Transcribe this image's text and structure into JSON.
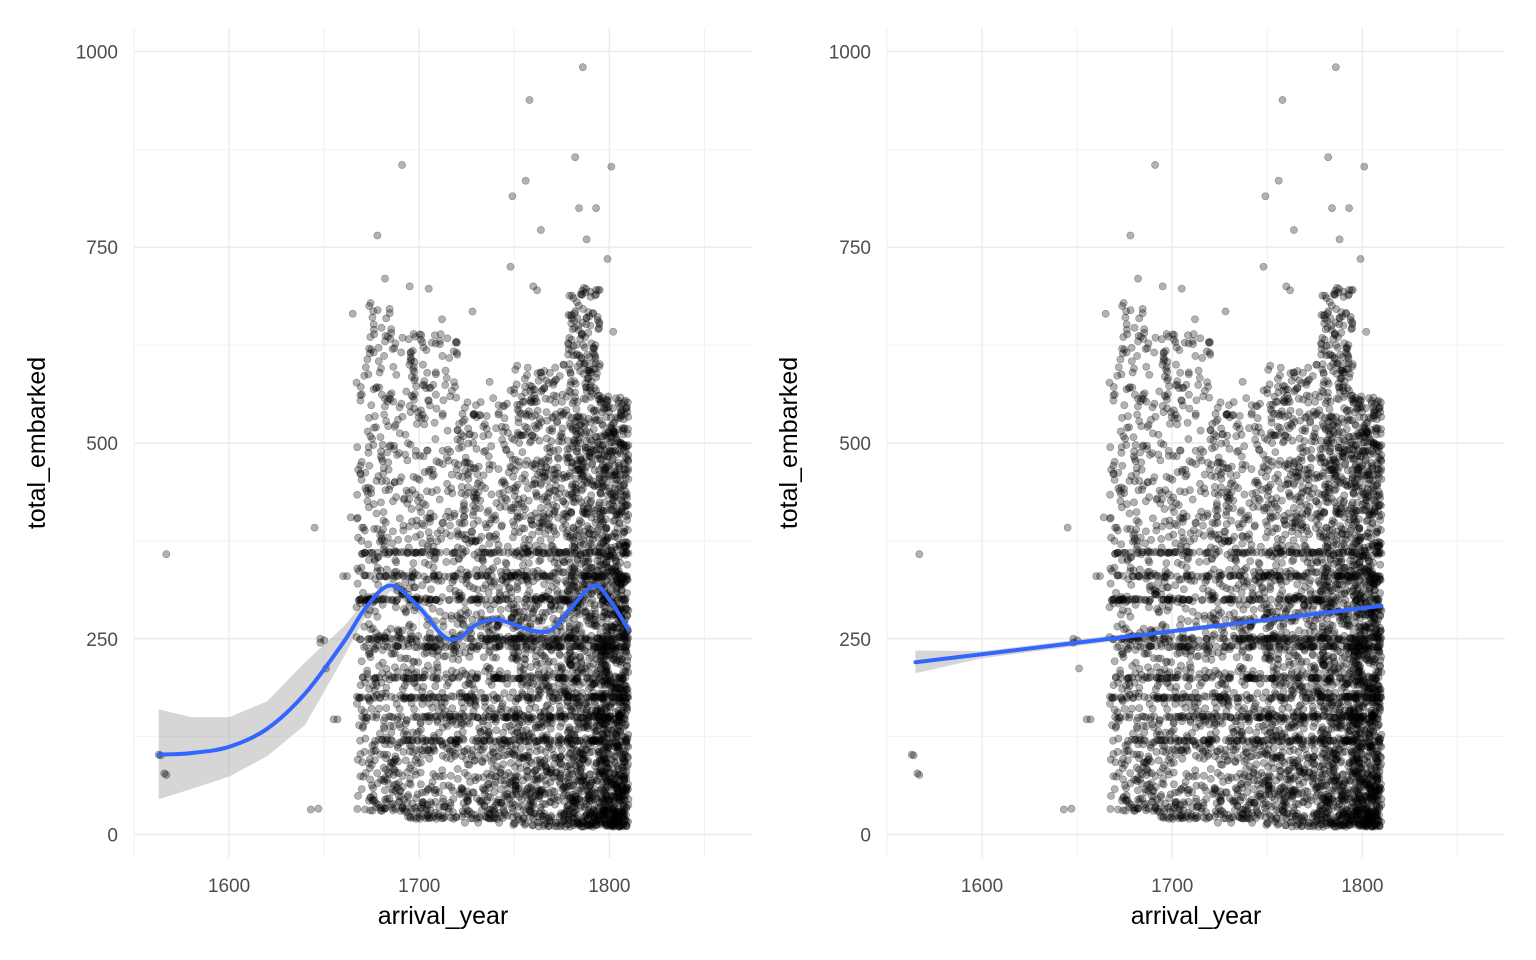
{
  "chart_data": [
    {
      "type": "scatter",
      "panel": "left",
      "smoother": "loess",
      "xlabel": "arrival_year",
      "ylabel": "total_embarked",
      "xlim": [
        1550,
        1875
      ],
      "ylim": [
        -30,
        1030
      ],
      "xticks": [
        1600,
        1700,
        1800
      ],
      "xtick_labels": [
        "1600",
        "1700",
        "1800"
      ],
      "yticks": [
        0,
        250,
        500,
        750,
        1000
      ],
      "ytick_labels": [
        "0",
        "250",
        "500",
        "750",
        "1000"
      ],
      "grid": true,
      "point_color": "#000000",
      "point_alpha": 0.3,
      "smooth_color": "#3366FF",
      "ribbon_color": "#999999",
      "smooth_line": [
        [
          1563,
          102
        ],
        [
          1580,
          104
        ],
        [
          1600,
          112
        ],
        [
          1620,
          135
        ],
        [
          1640,
          180
        ],
        [
          1660,
          245
        ],
        [
          1672,
          290
        ],
        [
          1685,
          318
        ],
        [
          1700,
          290
        ],
        [
          1712,
          255
        ],
        [
          1720,
          250
        ],
        [
          1730,
          268
        ],
        [
          1740,
          275
        ],
        [
          1750,
          268
        ],
        [
          1760,
          260
        ],
        [
          1770,
          262
        ],
        [
          1780,
          290
        ],
        [
          1792,
          318
        ],
        [
          1800,
          300
        ],
        [
          1810,
          262
        ]
      ],
      "ribbon_upper": [
        [
          1563,
          160
        ],
        [
          1580,
          150
        ],
        [
          1600,
          150
        ],
        [
          1620,
          170
        ],
        [
          1640,
          220
        ],
        [
          1660,
          265
        ],
        [
          1672,
          300
        ],
        [
          1685,
          325
        ],
        [
          1700,
          298
        ],
        [
          1712,
          262
        ],
        [
          1720,
          257
        ],
        [
          1730,
          274
        ],
        [
          1740,
          281
        ],
        [
          1750,
          274
        ],
        [
          1760,
          266
        ],
        [
          1770,
          268
        ],
        [
          1780,
          296
        ],
        [
          1792,
          324
        ],
        [
          1800,
          307
        ],
        [
          1810,
          272
        ]
      ],
      "ribbon_lower": [
        [
          1810,
          252
        ],
        [
          1800,
          293
        ],
        [
          1792,
          312
        ],
        [
          1780,
          284
        ],
        [
          1770,
          256
        ],
        [
          1760,
          254
        ],
        [
          1750,
          262
        ],
        [
          1740,
          269
        ],
        [
          1730,
          262
        ],
        [
          1720,
          243
        ],
        [
          1712,
          248
        ],
        [
          1700,
          282
        ],
        [
          1685,
          311
        ],
        [
          1672,
          280
        ],
        [
          1660,
          225
        ],
        [
          1640,
          140
        ],
        [
          1620,
          100
        ],
        [
          1600,
          74
        ],
        [
          1580,
          58
        ],
        [
          1563,
          45
        ]
      ]
    },
    {
      "type": "scatter",
      "panel": "right",
      "smoother": "lm",
      "xlabel": "arrival_year",
      "ylabel": "total_embarked",
      "xlim": [
        1550,
        1875
      ],
      "ylim": [
        -30,
        1030
      ],
      "xticks": [
        1600,
        1700,
        1800
      ],
      "xtick_labels": [
        "1600",
        "1700",
        "1800"
      ],
      "yticks": [
        0,
        250,
        500,
        750,
        1000
      ],
      "ytick_labels": [
        "0",
        "250",
        "500",
        "750",
        "1000"
      ],
      "grid": true,
      "point_color": "#000000",
      "point_alpha": 0.3,
      "smooth_color": "#3366FF",
      "ribbon_color": "#999999",
      "smooth_line": [
        [
          1565,
          220
        ],
        [
          1810,
          292
        ]
      ],
      "ribbon_upper": [
        [
          1565,
          235
        ],
        [
          1600,
          234
        ],
        [
          1660,
          252
        ],
        [
          1700,
          263
        ],
        [
          1760,
          280
        ],
        [
          1810,
          298
        ]
      ],
      "ribbon_lower": [
        [
          1810,
          286
        ],
        [
          1760,
          273
        ],
        [
          1700,
          257
        ],
        [
          1660,
          244
        ],
        [
          1600,
          225
        ],
        [
          1565,
          206
        ]
      ]
    }
  ],
  "scatter_points": {
    "note_free": true,
    "outliers": [
      [
        1563,
        102
      ],
      [
        1564,
        101
      ],
      [
        1566,
        78
      ],
      [
        1567,
        76
      ],
      [
        1567,
        358
      ],
      [
        1643,
        32
      ],
      [
        1645,
        392
      ],
      [
        1647,
        33
      ],
      [
        1648,
        250
      ],
      [
        1648,
        245
      ],
      [
        1650,
        248
      ],
      [
        1651,
        212
      ],
      [
        1655,
        147
      ],
      [
        1657,
        147
      ],
      [
        1660,
        330
      ],
      [
        1662,
        330
      ],
      [
        1664,
        405
      ],
      [
        1665,
        665
      ],
      [
        1667,
        577
      ],
      [
        1669,
        295
      ],
      [
        1672,
        145
      ],
      [
        1675,
        360
      ],
      [
        1678,
        765
      ],
      [
        1682,
        710
      ],
      [
        1686,
        620
      ],
      [
        1691,
        855
      ],
      [
        1695,
        700
      ],
      [
        1702,
        600
      ],
      [
        1705,
        697
      ],
      [
        1712,
        658
      ],
      [
        1718,
        20
      ],
      [
        1724,
        15
      ],
      [
        1728,
        668
      ],
      [
        1731,
        15
      ],
      [
        1737,
        578
      ],
      [
        1742,
        15
      ],
      [
        1748,
        725
      ],
      [
        1749,
        815
      ],
      [
        1752,
        510
      ],
      [
        1756,
        835
      ],
      [
        1758,
        938
      ],
      [
        1760,
        700
      ],
      [
        1762,
        695
      ],
      [
        1764,
        772
      ],
      [
        1772,
        15
      ],
      [
        1776,
        600
      ],
      [
        1782,
        865
      ],
      [
        1784,
        800
      ],
      [
        1786,
        980
      ],
      [
        1788,
        760
      ],
      [
        1793,
        800
      ],
      [
        1799,
        735
      ],
      [
        1801,
        853
      ],
      [
        1802,
        642
      ],
      [
        1805,
        10
      ],
      [
        1808,
        20
      ],
      [
        1810,
        45
      ]
    ],
    "dense_bands": [
      {
        "x": [
          1667,
          1690
        ],
        "y": [
          30,
          680
        ],
        "n": 380
      },
      {
        "x": [
          1690,
          1720
        ],
        "y": [
          20,
          640
        ],
        "n": 520
      },
      {
        "x": [
          1720,
          1748
        ],
        "y": [
          20,
          560
        ],
        "n": 560
      },
      {
        "x": [
          1748,
          1778
        ],
        "y": [
          10,
          600
        ],
        "n": 900
      },
      {
        "x": [
          1778,
          1795
        ],
        "y": [
          10,
          700
        ],
        "n": 900
      },
      {
        "x": [
          1795,
          1810
        ],
        "y": [
          10,
          560
        ],
        "n": 1100
      }
    ],
    "horizontal_streaks": [
      360,
      330,
      300,
      250,
      240,
      200,
      175,
      150,
      120
    ]
  }
}
